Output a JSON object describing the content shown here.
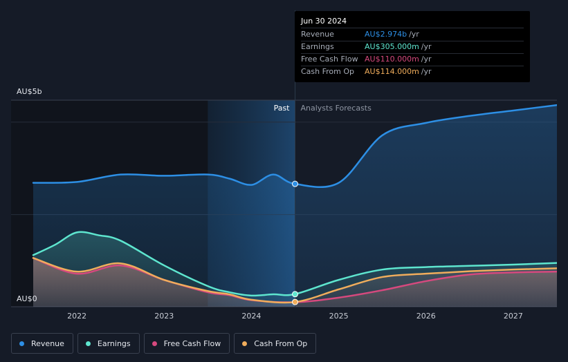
{
  "chart_data": {
    "type": "line",
    "ylim": [
      0,
      5
    ],
    "y_tick_labels": [
      "AU$0",
      "AU$5b"
    ],
    "x_tick_labels": [
      "2022",
      "2023",
      "2024",
      "2025",
      "2026",
      "2027"
    ],
    "x_range": [
      2021.5,
      2027.5
    ],
    "past_label": "Past",
    "forecast_label": "Analysts Forecasts",
    "past_shaded_start": 2023.5,
    "divider_x": 2024.5,
    "gridlines": true,
    "legend_position": "bottom-left",
    "series": [
      {
        "name": "Revenue",
        "color": "#2d8fe5",
        "points": [
          [
            2021.5,
            3.0
          ],
          [
            2022.0,
            3.02
          ],
          [
            2022.5,
            3.2
          ],
          [
            2023.0,
            3.17
          ],
          [
            2023.5,
            3.2
          ],
          [
            2023.75,
            3.1
          ],
          [
            2024.0,
            2.95
          ],
          [
            2024.25,
            3.2
          ],
          [
            2024.5,
            2.974
          ],
          [
            2025.0,
            3.0
          ],
          [
            2025.5,
            4.15
          ],
          [
            2026.0,
            4.45
          ],
          [
            2026.5,
            4.62
          ],
          [
            2027.0,
            4.75
          ],
          [
            2027.5,
            4.88
          ]
        ]
      },
      {
        "name": "Earnings",
        "color": "#5ee6cf",
        "points": [
          [
            2021.5,
            1.25
          ],
          [
            2021.75,
            1.5
          ],
          [
            2022.0,
            1.8
          ],
          [
            2022.25,
            1.73
          ],
          [
            2022.5,
            1.6
          ],
          [
            2023.0,
            1.0
          ],
          [
            2023.5,
            0.5
          ],
          [
            2023.75,
            0.35
          ],
          [
            2024.0,
            0.27
          ],
          [
            2024.25,
            0.3
          ],
          [
            2024.5,
            0.305
          ],
          [
            2025.0,
            0.65
          ],
          [
            2025.5,
            0.9
          ],
          [
            2026.0,
            0.96
          ],
          [
            2026.5,
            0.99
          ],
          [
            2027.0,
            1.02
          ],
          [
            2027.5,
            1.06
          ]
        ]
      },
      {
        "name": "Free Cash Flow",
        "color": "#d6497e",
        "points": [
          [
            2021.5,
            1.18
          ],
          [
            2022.0,
            0.8
          ],
          [
            2022.5,
            1.0
          ],
          [
            2023.0,
            0.65
          ],
          [
            2023.5,
            0.35
          ],
          [
            2023.75,
            0.28
          ],
          [
            2024.0,
            0.16
          ],
          [
            2024.5,
            0.11
          ],
          [
            2025.0,
            0.22
          ],
          [
            2025.5,
            0.4
          ],
          [
            2026.0,
            0.62
          ],
          [
            2026.5,
            0.78
          ],
          [
            2027.0,
            0.83
          ],
          [
            2027.5,
            0.85
          ]
        ]
      },
      {
        "name": "Cash From Op",
        "color": "#f0ad5c",
        "points": [
          [
            2021.5,
            1.18
          ],
          [
            2022.0,
            0.85
          ],
          [
            2022.5,
            1.05
          ],
          [
            2023.0,
            0.65
          ],
          [
            2023.5,
            0.38
          ],
          [
            2023.75,
            0.3
          ],
          [
            2024.0,
            0.17
          ],
          [
            2024.5,
            0.114
          ],
          [
            2025.0,
            0.42
          ],
          [
            2025.5,
            0.72
          ],
          [
            2026.0,
            0.8
          ],
          [
            2026.5,
            0.86
          ],
          [
            2027.0,
            0.9
          ],
          [
            2027.5,
            0.93
          ]
        ]
      }
    ],
    "highlight_x": 2024.5
  },
  "tooltip": {
    "date": "Jun 30 2024",
    "rows": [
      {
        "label": "Revenue",
        "value": "AU$2.974b",
        "unit": "/yr",
        "color": "#2d8fe5"
      },
      {
        "label": "Earnings",
        "value": "AU$305.000m",
        "unit": "/yr",
        "color": "#5ee6cf"
      },
      {
        "label": "Free Cash Flow",
        "value": "AU$110.000m",
        "unit": "/yr",
        "color": "#d6497e"
      },
      {
        "label": "Cash From Op",
        "value": "AU$114.000m",
        "unit": "/yr",
        "color": "#f0ad5c"
      }
    ]
  },
  "legend": [
    {
      "label": "Revenue",
      "color": "#2d8fe5"
    },
    {
      "label": "Earnings",
      "color": "#5ee6cf"
    },
    {
      "label": "Free Cash Flow",
      "color": "#d6497e"
    },
    {
      "label": "Cash From Op",
      "color": "#f0ad5c"
    }
  ]
}
